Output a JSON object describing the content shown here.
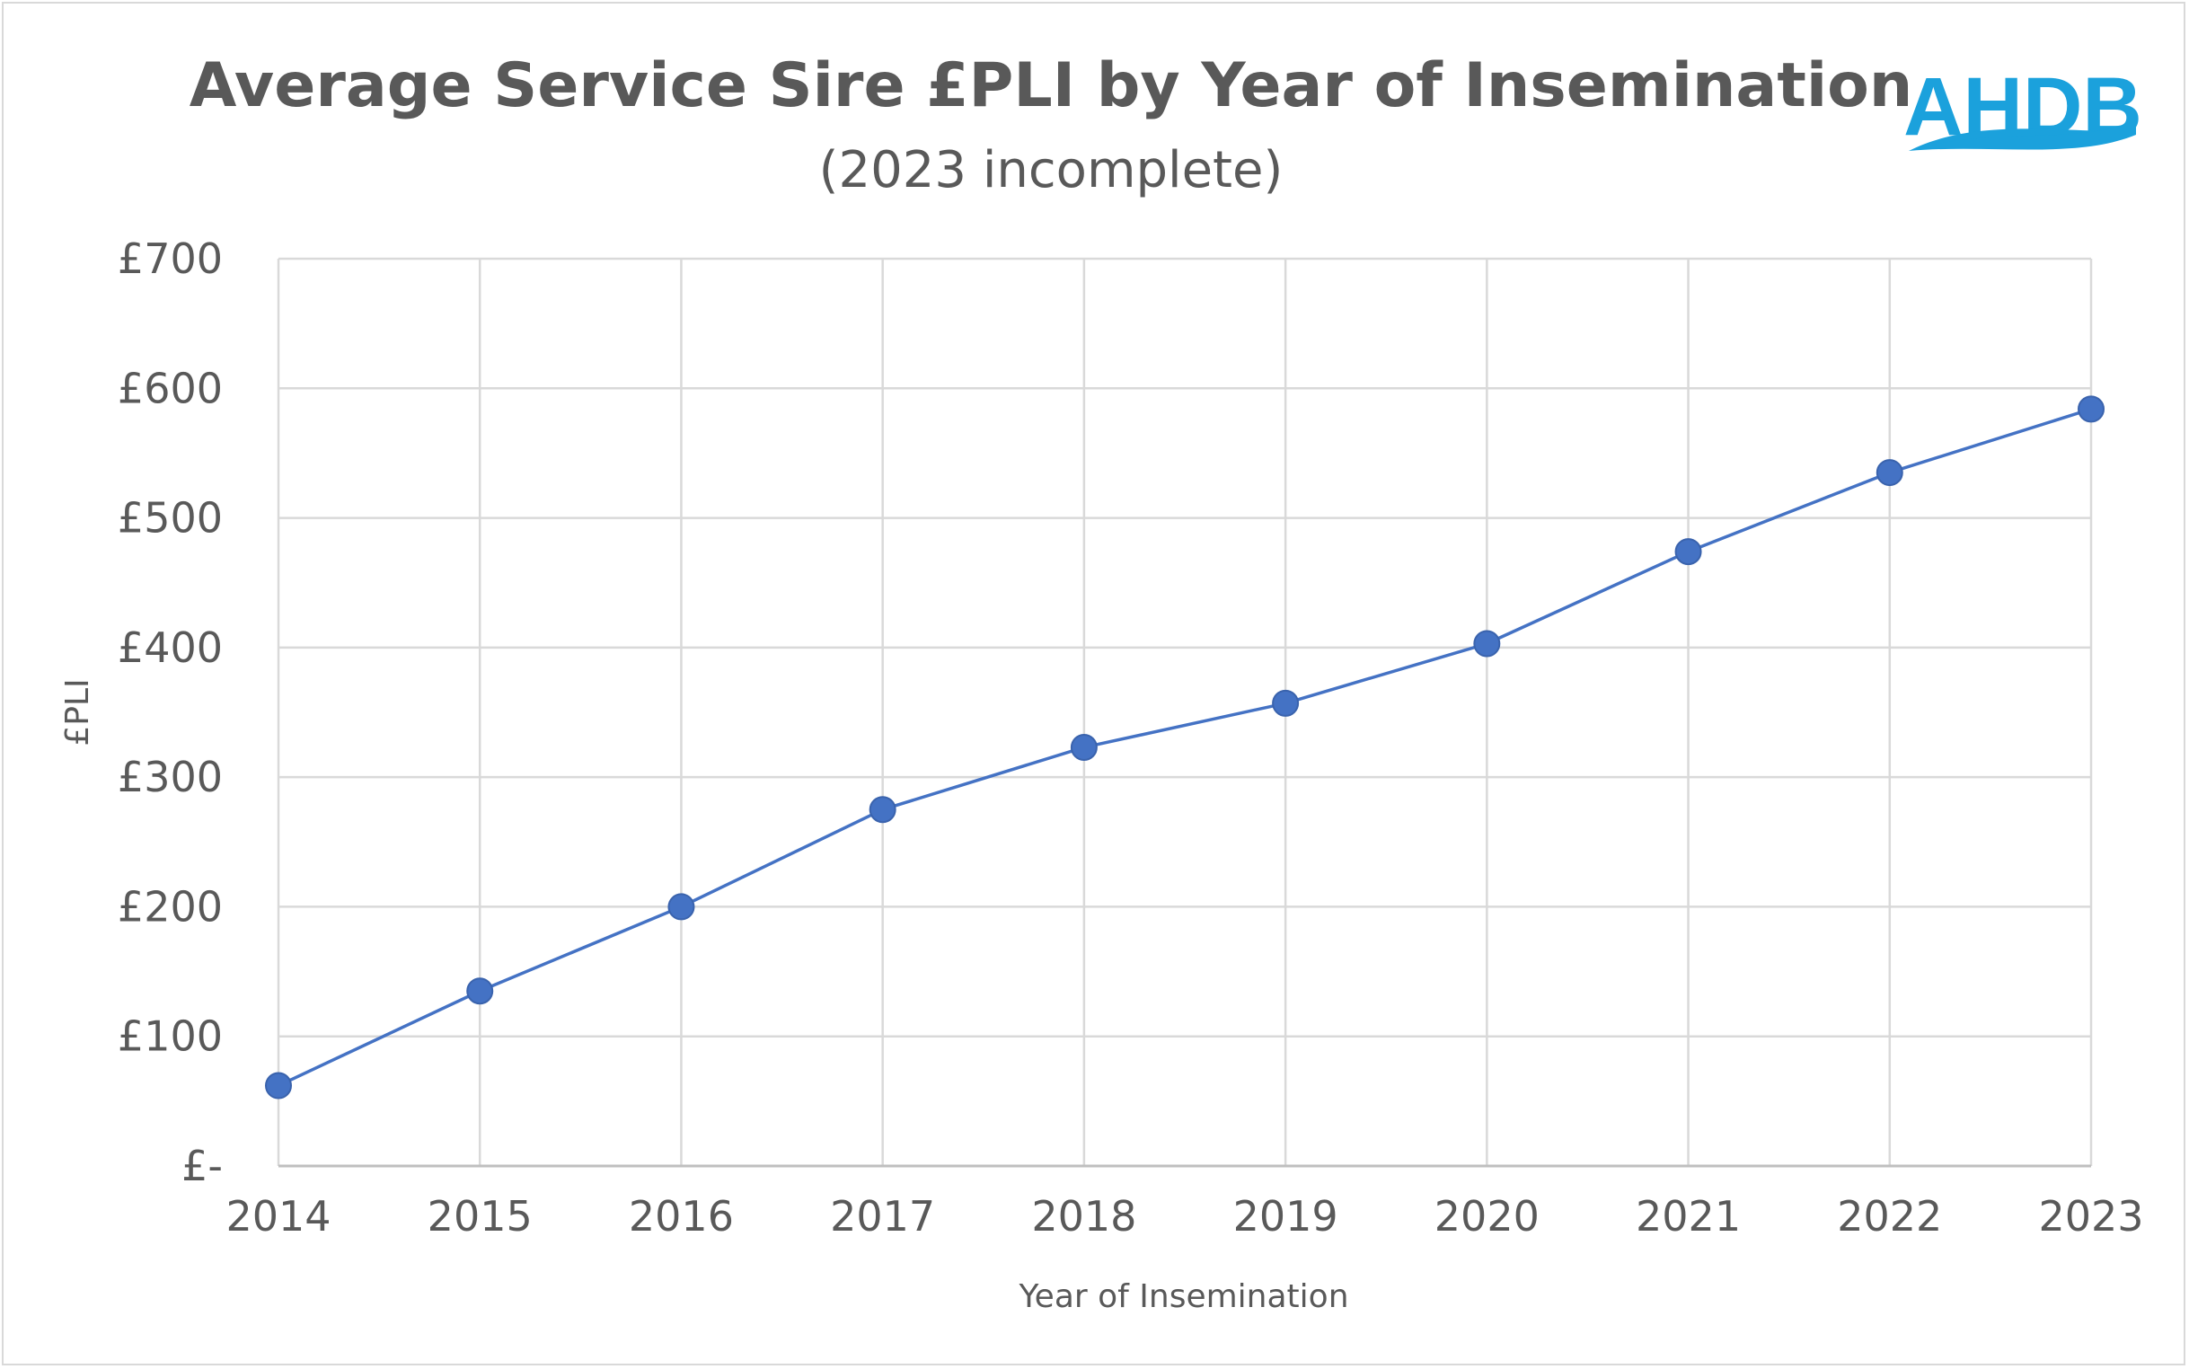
{
  "chart_data": {
    "type": "line",
    "title": "Average Service Sire £PLI by Year of Insemination",
    "subtitle": "(2023 incomplete)",
    "xlabel": "Year of Insemination",
    "ylabel": "£PLI",
    "categories": [
      "2014",
      "2015",
      "2016",
      "2017",
      "2018",
      "2019",
      "2020",
      "2021",
      "2022",
      "2023"
    ],
    "series": [
      {
        "values": [
          62,
          135,
          200,
          275,
          323,
          357,
          403,
          474,
          535,
          584
        ]
      }
    ],
    "ylim": [
      0,
      700
    ],
    "ytick_labels": [
      "£-",
      "£100",
      "£200",
      "£300",
      "£400",
      "£500",
      "£600",
      "£700"
    ],
    "grid": true,
    "line_color": "#4472c4",
    "marker_color": "#4472c4"
  },
  "logo": {
    "text": "AHDB",
    "color": "#1ba1dc"
  }
}
